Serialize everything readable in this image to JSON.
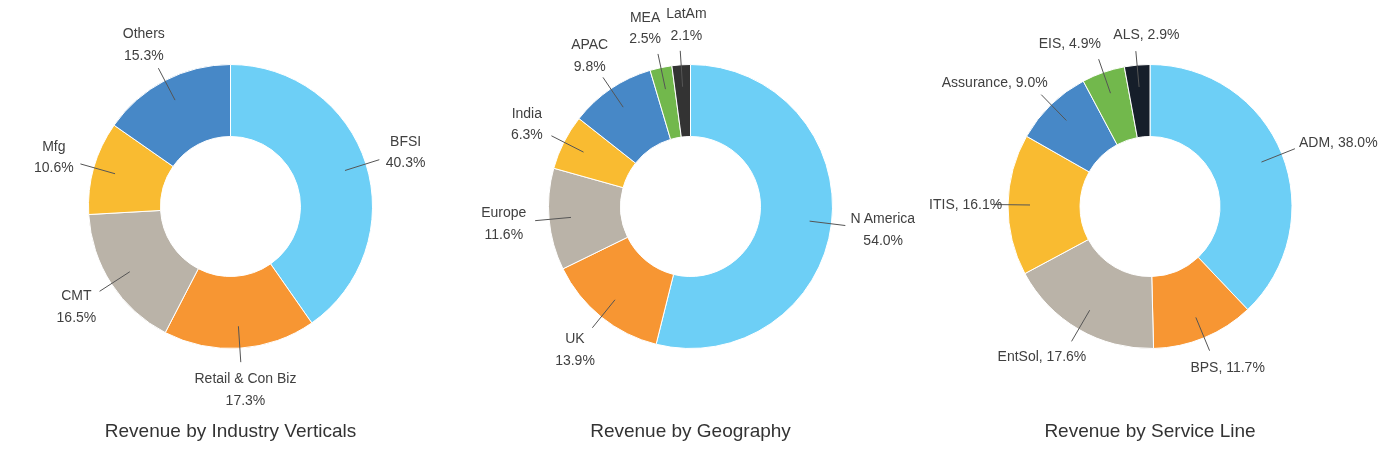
{
  "chart_data": [
    {
      "type": "donut",
      "title": "Revenue by Industry Verticals",
      "categories": [
        "BFSI",
        "Retail & Con Biz",
        "CMT",
        "Mfg",
        "Others"
      ],
      "values": [
        40.3,
        17.3,
        16.5,
        10.6,
        15.3
      ],
      "value_labels": [
        "40.3%",
        "17.3%",
        "16.5%",
        "10.6%",
        "15.3%"
      ],
      "colors": [
        "#6dcff6",
        "#f79633",
        "#bab3a8",
        "#f9bb31",
        "#4788c7"
      ]
    },
    {
      "type": "donut",
      "title": "Revenue by Geography",
      "categories": [
        "N America",
        "UK",
        "Europe",
        "India",
        "APAC",
        "MEA",
        "LatAm"
      ],
      "values": [
        54.0,
        13.9,
        11.6,
        6.3,
        9.8,
        2.5,
        2.1
      ],
      "value_labels": [
        "54.0%",
        "13.9%",
        "11.6%",
        "6.3%",
        "9.8%",
        "2.5%",
        "2.1%"
      ],
      "colors": [
        "#6dcff6",
        "#f79633",
        "#bab3a8",
        "#f9bb31",
        "#4788c7",
        "#72b84c",
        "#333333"
      ]
    },
    {
      "type": "donut",
      "title": "Revenue by Service Line",
      "categories": [
        "ADM",
        "BPS",
        "EntSol",
        "ITIS",
        "Assurance",
        "EIS",
        "ALS"
      ],
      "values": [
        38.0,
        11.7,
        17.6,
        16.1,
        9.0,
        4.9,
        2.9
      ],
      "value_labels": [
        "38.0%",
        "11.7%",
        "17.6%",
        "16.1%",
        "9.0%",
        "4.9%",
        "2.9%"
      ],
      "colors": [
        "#6dcff6",
        "#f79633",
        "#bab3a8",
        "#f9bb31",
        "#4788c7",
        "#72b84c",
        "#161e2a"
      ]
    }
  ]
}
